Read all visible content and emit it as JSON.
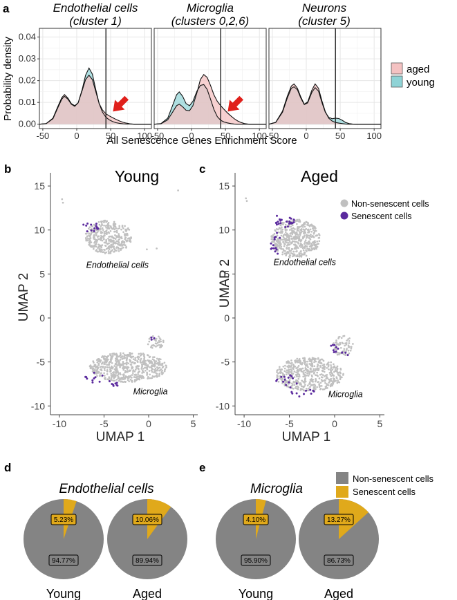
{
  "colors": {
    "aged": "#F4C2C2",
    "young": "#8FD3D6",
    "overlap": "#9FB3B0",
    "non_senescent_dot": "#C0C0C0",
    "senescent_dot": "#5B2A9E",
    "pie_non_senescent": "#848484",
    "pie_senescent": "#E0A91B",
    "arrow": "#E0201B",
    "grid": "#E6E6E6",
    "panel_bg": "#FFFFFF"
  },
  "panels": {
    "a": "a",
    "b": "b",
    "c": "c",
    "d": "d",
    "e": "e"
  },
  "chart_data": [
    {
      "type": "area",
      "panel": "a",
      "ylabel": "Probability density",
      "xlabel": "All Senescence  Genes Enrichment Score",
      "xlim": [
        -55,
        110
      ],
      "ylim": [
        -0.002,
        0.044
      ],
      "xticks": [
        -50,
        0,
        50,
        100
      ],
      "yticks": [
        0.0,
        0.01,
        0.02,
        0.03,
        0.04
      ],
      "ytick_labels": [
        "0.00",
        "0.01",
        "0.02",
        "0.03",
        "0.04"
      ],
      "xtick_labels": [
        "-50",
        "0",
        "50",
        "100"
      ],
      "legend": {
        "placement": "right",
        "entries": [
          "aged",
          "young"
        ]
      },
      "facets": [
        {
          "title_line1": "Endothelial cells",
          "title_line2": "(cluster 1)",
          "vline": 43,
          "arrow": true,
          "series": [
            {
              "name": "young",
              "x": [
                -55,
                -45,
                -35,
                -28,
                -22,
                -18,
                -13,
                -8,
                -3,
                2,
                8,
                13,
                18,
                23,
                28,
                33,
                38,
                43,
                48,
                53,
                58,
                63,
                68,
                73,
                78,
                85,
                95,
                110
              ],
              "values": [
                0,
                0.0003,
                0.0025,
                0.0075,
                0.0115,
                0.0128,
                0.0115,
                0.0092,
                0.0082,
                0.0098,
                0.016,
                0.0225,
                0.0258,
                0.023,
                0.016,
                0.0095,
                0.0055,
                0.0032,
                0.002,
                0.0012,
                0.0007,
                0.0004,
                0.0002,
                0.0001,
                5e-05,
                0,
                0,
                0
              ]
            },
            {
              "name": "aged",
              "x": [
                -55,
                -45,
                -35,
                -28,
                -22,
                -18,
                -13,
                -8,
                -3,
                2,
                8,
                13,
                18,
                23,
                28,
                33,
                38,
                43,
                48,
                53,
                58,
                63,
                68,
                73,
                78,
                85,
                95,
                110
              ],
              "values": [
                0,
                0.0003,
                0.0028,
                0.008,
                0.0122,
                0.0136,
                0.012,
                0.0095,
                0.0085,
                0.0098,
                0.0155,
                0.0205,
                0.0225,
                0.0205,
                0.015,
                0.0095,
                0.0065,
                0.0048,
                0.0038,
                0.003,
                0.0022,
                0.0015,
                0.0009,
                0.0005,
                0.0002,
                0,
                0,
                0
              ]
            }
          ]
        },
        {
          "title_line1": "Microglia",
          "title_line2": "(clusters 0,2,6)",
          "vline": 43,
          "arrow": true,
          "series": [
            {
              "name": "young",
              "x": [
                -55,
                -45,
                -35,
                -28,
                -22,
                -18,
                -13,
                -8,
                -3,
                2,
                8,
                13,
                18,
                23,
                28,
                33,
                38,
                43,
                48,
                53,
                58,
                63,
                68,
                73,
                78,
                85,
                95,
                110
              ],
              "values": [
                0,
                0.0003,
                0.0028,
                0.0085,
                0.0135,
                0.0148,
                0.0128,
                0.0095,
                0.0085,
                0.0105,
                0.0152,
                0.0178,
                0.0182,
                0.016,
                0.0115,
                0.0068,
                0.0035,
                0.0018,
                0.001,
                0.0006,
                0.0003,
                0.0001,
                0,
                0,
                0,
                0,
                0,
                0
              ]
            },
            {
              "name": "aged",
              "x": [
                -55,
                -45,
                -35,
                -28,
                -22,
                -18,
                -13,
                -8,
                -3,
                2,
                8,
                13,
                18,
                23,
                28,
                33,
                38,
                43,
                48,
                53,
                58,
                63,
                68,
                73,
                78,
                85,
                95,
                110
              ],
              "values": [
                0,
                0.0002,
                0.002,
                0.0055,
                0.0085,
                0.0092,
                0.008,
                0.0064,
                0.0062,
                0.0085,
                0.0145,
                0.0205,
                0.0228,
                0.0215,
                0.0178,
                0.0135,
                0.0105,
                0.0085,
                0.0068,
                0.0052,
                0.0038,
                0.0025,
                0.0015,
                0.0008,
                0.0003,
                0,
                0,
                0
              ]
            }
          ]
        },
        {
          "title_line1": "Neurons",
          "title_line2": "(cluster 5)",
          "vline": 43,
          "arrow": false,
          "series": [
            {
              "name": "young",
              "x": [
                -55,
                -45,
                -35,
                -28,
                -22,
                -18,
                -13,
                -8,
                -3,
                2,
                8,
                13,
                18,
                23,
                28,
                33,
                38,
                43,
                48,
                53,
                58,
                63,
                68,
                73,
                78,
                85,
                95,
                110
              ],
              "values": [
                0,
                0.0008,
                0.0055,
                0.012,
                0.0165,
                0.0172,
                0.0158,
                0.012,
                0.009,
                0.0098,
                0.0145,
                0.0168,
                0.0152,
                0.01,
                0.0055,
                0.0032,
                0.0025,
                0.0028,
                0.0026,
                0.0018,
                0.0008,
                0.0003,
                0.0001,
                0,
                0,
                0,
                0,
                0
              ]
            },
            {
              "name": "aged",
              "x": [
                -55,
                -45,
                -35,
                -28,
                -22,
                -18,
                -13,
                -8,
                -3,
                2,
                8,
                13,
                18,
                23,
                28,
                33,
                38,
                43,
                48,
                53,
                58,
                63,
                68,
                73,
                78,
                85,
                95,
                110
              ],
              "values": [
                0,
                0.0009,
                0.006,
                0.0128,
                0.0175,
                0.0185,
                0.0165,
                0.0125,
                0.0092,
                0.0102,
                0.0155,
                0.0185,
                0.0165,
                0.0108,
                0.0058,
                0.0028,
                0.0015,
                0.0008,
                0.0005,
                0.0003,
                0.0001,
                0,
                0,
                0,
                0,
                0,
                0,
                0
              ]
            }
          ]
        }
      ]
    },
    {
      "type": "scatter",
      "panel": "b",
      "title": "Young",
      "xlabel": "UMAP 1",
      "ylabel": "UMAP 2",
      "xlim": [
        -11,
        5.5
      ],
      "ylim": [
        -11,
        16.5
      ],
      "xticks": [
        -10,
        -5,
        0,
        5
      ],
      "xtick_labels": [
        "-10",
        "-5",
        "0",
        "5"
      ],
      "yticks": [
        -10,
        -5,
        0,
        5,
        10,
        15
      ],
      "ytick_labels": [
        "-10",
        "-5",
        "0",
        "5",
        "10",
        "15"
      ],
      "annotations": [
        {
          "text": "Endothelial cells",
          "x": -3.5,
          "y": 5.7
        },
        {
          "text": "Microglia",
          "x": 0.2,
          "y": -8.7
        }
      ],
      "series": [
        {
          "name": "Non-senescent cells",
          "clusters": [
            {
              "cx": -4.5,
              "cy": 9.2,
              "rx": 2.6,
              "ry": 1.9,
              "n": 380
            },
            {
              "cx": -2.3,
              "cy": -5.6,
              "rx": 4.3,
              "ry": 1.7,
              "n": 600
            },
            {
              "cx": 0.8,
              "cy": -2.8,
              "rx": 0.9,
              "ry": 0.8,
              "n": 40
            }
          ],
          "points": [
            [
              -9.7,
              13.5
            ],
            [
              -9.6,
              13.1
            ],
            [
              3.3,
              14.5
            ],
            [
              -0.2,
              7.8
            ],
            [
              0.9,
              7.9
            ]
          ]
        },
        {
          "name": "Senescent cells",
          "clusters": [
            {
              "cx": -6.5,
              "cy": 10.3,
              "rx": 1.0,
              "ry": 0.6,
              "n": 14
            },
            {
              "cx": -6.0,
              "cy": -6.8,
              "rx": 1.3,
              "ry": 0.6,
              "n": 10
            },
            {
              "cx": -3.5,
              "cy": -7.3,
              "rx": 1.0,
              "ry": 0.5,
              "n": 8
            },
            {
              "cx": 0.4,
              "cy": -2.3,
              "rx": 0.3,
              "ry": 0.4,
              "n": 3
            }
          ],
          "points": []
        }
      ]
    },
    {
      "type": "scatter",
      "panel": "c",
      "title": "Aged",
      "xlabel": "UMAP 1",
      "ylabel": "UMAP 2",
      "xlim": [
        -11,
        5.5
      ],
      "ylim": [
        -11,
        16.5
      ],
      "xticks": [
        -10,
        -5,
        0,
        5
      ],
      "xtick_labels": [
        "-10",
        "-5",
        "0",
        "5"
      ],
      "yticks": [
        -10,
        -5,
        0,
        5,
        10,
        15
      ],
      "ytick_labels": [
        "-10",
        "-5",
        "0",
        "5",
        "10",
        "15"
      ],
      "annotations": [
        {
          "text": "Endothelial cells",
          "x": -3.3,
          "y": 6.0
        },
        {
          "text": "Microglia",
          "x": 1.2,
          "y": -9.0
        }
      ],
      "legend": {
        "placement": "top-right",
        "entries": [
          "Non-senescent cells",
          "Senescent cells"
        ]
      },
      "series": [
        {
          "name": "Non-senescent cells",
          "clusters": [
            {
              "cx": -4.3,
              "cy": 9.0,
              "rx": 2.7,
              "ry": 2.2,
              "n": 500
            },
            {
              "cx": -2.8,
              "cy": -6.4,
              "rx": 3.8,
              "ry": 1.9,
              "n": 520
            },
            {
              "cx": 0.9,
              "cy": -3.2,
              "rx": 1.2,
              "ry": 1.2,
              "n": 70
            }
          ],
          "points": [
            [
              -9.8,
              13.6
            ],
            [
              -9.7,
              13.3
            ]
          ]
        },
        {
          "name": "Senescent cells",
          "clusters": [
            {
              "cx": -5.8,
              "cy": 11.0,
              "rx": 1.4,
              "ry": 0.7,
              "n": 24
            },
            {
              "cx": -6.5,
              "cy": 8.5,
              "rx": 0.6,
              "ry": 1.3,
              "n": 14
            },
            {
              "cx": -5.5,
              "cy": -7.2,
              "rx": 1.4,
              "ry": 0.8,
              "n": 14
            },
            {
              "cx": -3.5,
              "cy": -8.5,
              "rx": 1.3,
              "ry": 0.5,
              "n": 10
            },
            {
              "cx": 0.0,
              "cy": -3.3,
              "rx": 0.5,
              "ry": 0.6,
              "n": 8
            },
            {
              "cx": 1.1,
              "cy": -4.2,
              "rx": 0.4,
              "ry": 0.4,
              "n": 4
            }
          ],
          "points": []
        }
      ]
    },
    {
      "type": "pie",
      "panel": "d",
      "title": "Endothelial cells",
      "categories": [
        "Senescent cells",
        "Non-senescent cells"
      ],
      "pies": [
        {
          "label": "Young",
          "values": [
            5.23,
            94.77
          ],
          "value_labels": [
            "5.23%",
            "94.77%"
          ]
        },
        {
          "label": "Aged",
          "values": [
            10.06,
            89.94
          ],
          "value_labels": [
            "10.06%",
            "89.94%"
          ]
        }
      ]
    },
    {
      "type": "pie",
      "panel": "e",
      "title": "Microglia",
      "categories": [
        "Senescent cells",
        "Non-senescent cells"
      ],
      "legend": {
        "placement": "top-right",
        "entries": [
          "Non-senescent cells",
          "Senescent cells"
        ]
      },
      "pies": [
        {
          "label": "Young",
          "values": [
            4.1,
            95.9
          ],
          "value_labels": [
            "4.10%",
            "95.90%"
          ]
        },
        {
          "label": "Aged",
          "values": [
            13.27,
            86.73
          ],
          "value_labels": [
            "13.27%",
            "86.73%"
          ]
        }
      ]
    }
  ]
}
